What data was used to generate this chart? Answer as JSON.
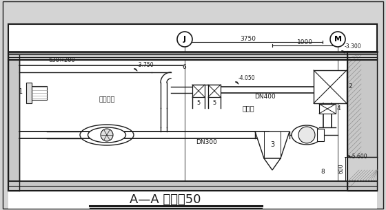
{
  "title": "A—A 剪面图50",
  "bg_color": "#d4d4d4",
  "lc": "#1a1a1a",
  "gc": "#888888",
  "figsize": [
    5.6,
    3.05
  ],
  "dpi": 100,
  "labels": {
    "J": "J",
    "M": "M",
    "d3750": "3750",
    "d1000": "1000",
    "e330": "-3.300",
    "e375": "-3.750",
    "e405": "-4.050",
    "e560": "-5.600",
    "dn400": "DN400",
    "dn300": "DN300",
    "s630": "630×200",
    "n1": "1",
    "n2": "2",
    "n3": "3",
    "n4": "4",
    "n5a": "5",
    "n5b": "5",
    "n6": "6",
    "n8": "8",
    "room1": "进风机房",
    "room2": "过滤室"
  }
}
